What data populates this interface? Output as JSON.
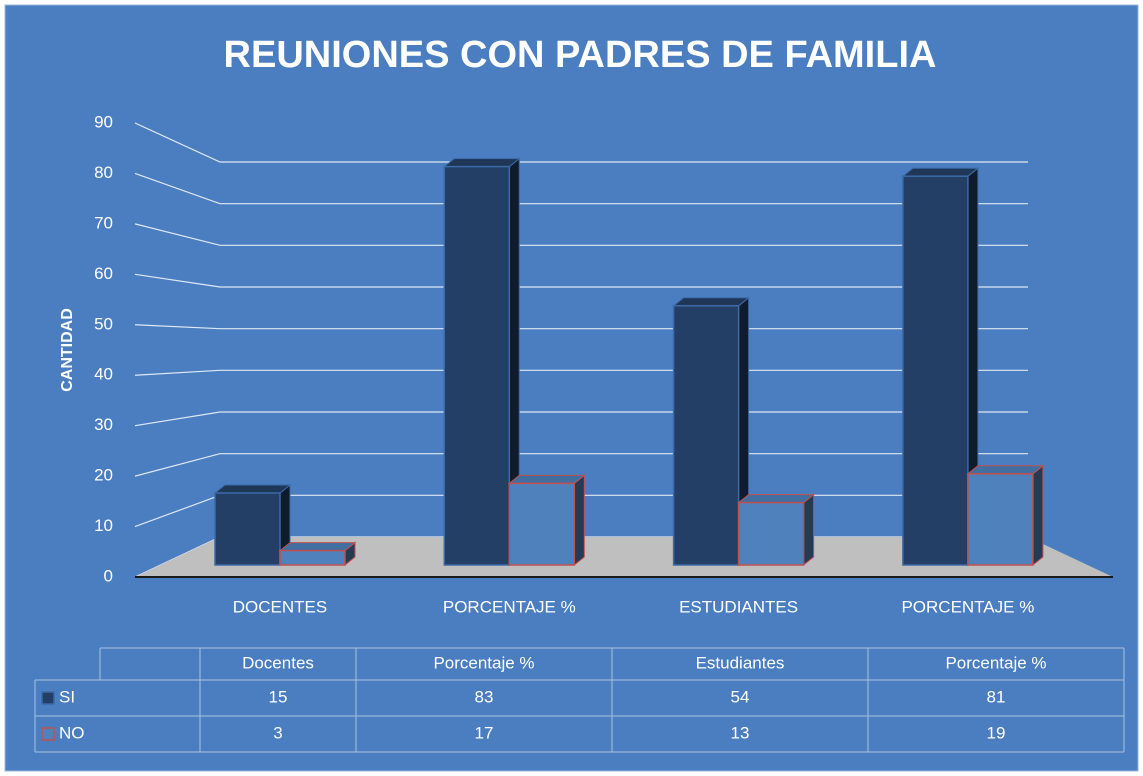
{
  "chart_data": {
    "type": "bar3d",
    "title": "REUNIONES CON PADRES DE FAMILIA",
    "y_label": "CANTIDAD",
    "categories": [
      "DOCENTES",
      "PORCENTAJE %",
      "ESTUDIANTES",
      "PORCENTAJE %"
    ],
    "table_categories": [
      "Docentes",
      "Porcentaje %",
      "Estudiantes",
      "Porcentaje %"
    ],
    "series": [
      {
        "name": "SI",
        "color": "#243f66",
        "border_color": "#3a6aa8",
        "values": [
          15,
          83,
          54,
          81
        ]
      },
      {
        "name": "NO",
        "color": "#4f81bd",
        "border_color": "#c0504d",
        "values": [
          3,
          17,
          13,
          19
        ]
      }
    ],
    "ylim": [
      0,
      90
    ],
    "yticks": [
      0,
      10,
      20,
      30,
      40,
      50,
      60,
      70,
      80,
      90
    ],
    "grid": true
  }
}
